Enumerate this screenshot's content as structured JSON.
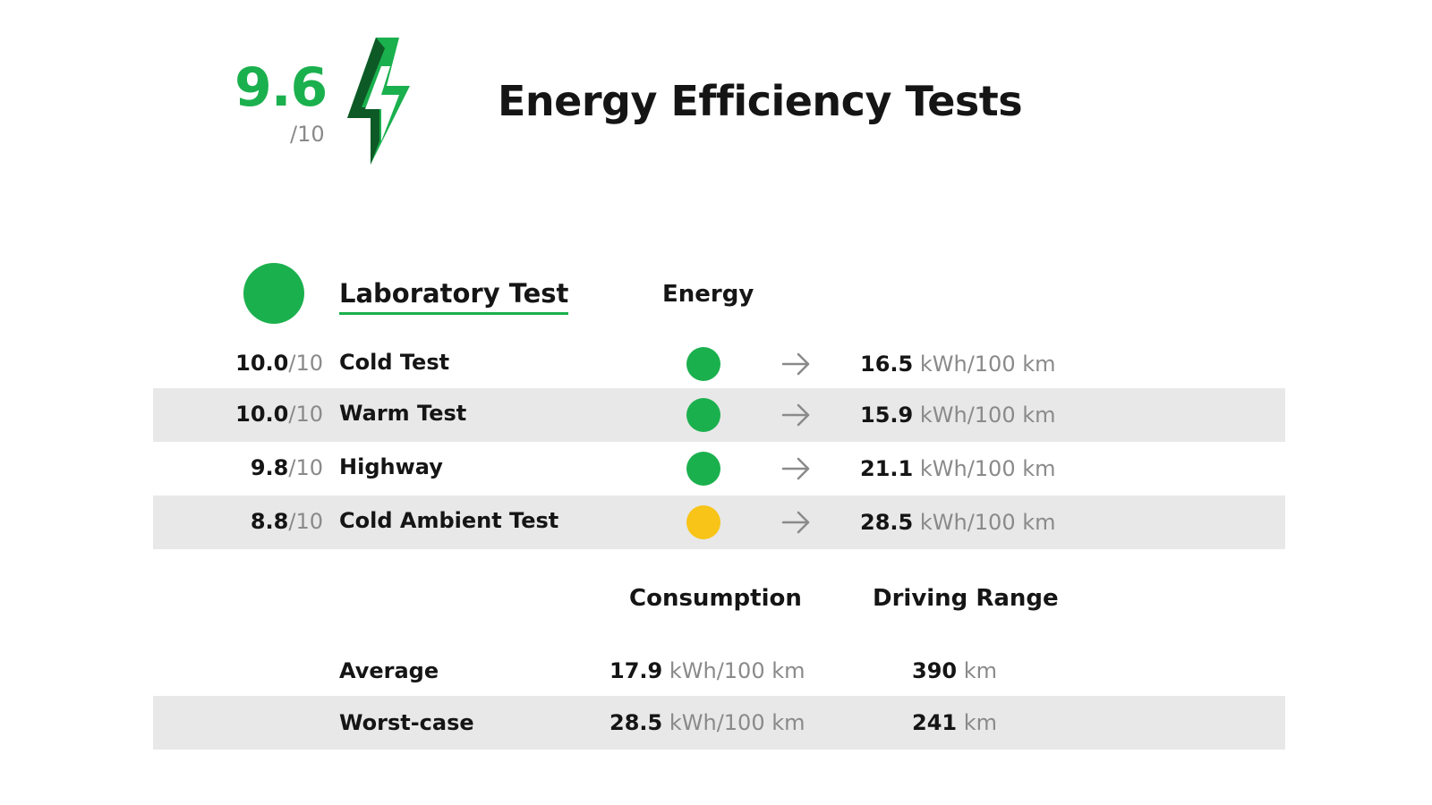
{
  "header": {
    "overall_score": "9.6",
    "overall_score_denominator": "/10",
    "title": "Energy Efficiency Tests",
    "bolt_icon": "lightning-bolt-icon"
  },
  "colors": {
    "green": "#1bb04e",
    "dark_green": "#0e5a26",
    "yellow": "#f7c417",
    "shaded_row": "#e8e8e8"
  },
  "lab": {
    "title": "Laboratory Test",
    "energy_header": "Energy",
    "rows": [
      {
        "score": "10.0",
        "denominator": "/10",
        "label": "Cold Test",
        "status": "green",
        "value": "16.5",
        "unit": "kWh/100 km"
      },
      {
        "score": "10.0",
        "denominator": "/10",
        "label": "Warm Test",
        "status": "green",
        "value": "15.9",
        "unit": "kWh/100 km"
      },
      {
        "score": "9.8",
        "denominator": "/10",
        "label": "Highway",
        "status": "green",
        "value": "21.1",
        "unit": "kWh/100 km"
      },
      {
        "score": "8.8",
        "denominator": "/10",
        "label": "Cold Ambient Test",
        "status": "yellow",
        "value": "28.5",
        "unit": "kWh/100 km"
      }
    ]
  },
  "summary": {
    "consumption_header": "Consumption",
    "range_header": "Driving Range",
    "rows": [
      {
        "label": "Average",
        "consumption": "17.9",
        "consumption_unit": "kWh/100 km",
        "range": "390",
        "range_unit": "km"
      },
      {
        "label": "Worst-case",
        "consumption": "28.5",
        "consumption_unit": "kWh/100 km",
        "range": "241",
        "range_unit": "km"
      }
    ]
  }
}
